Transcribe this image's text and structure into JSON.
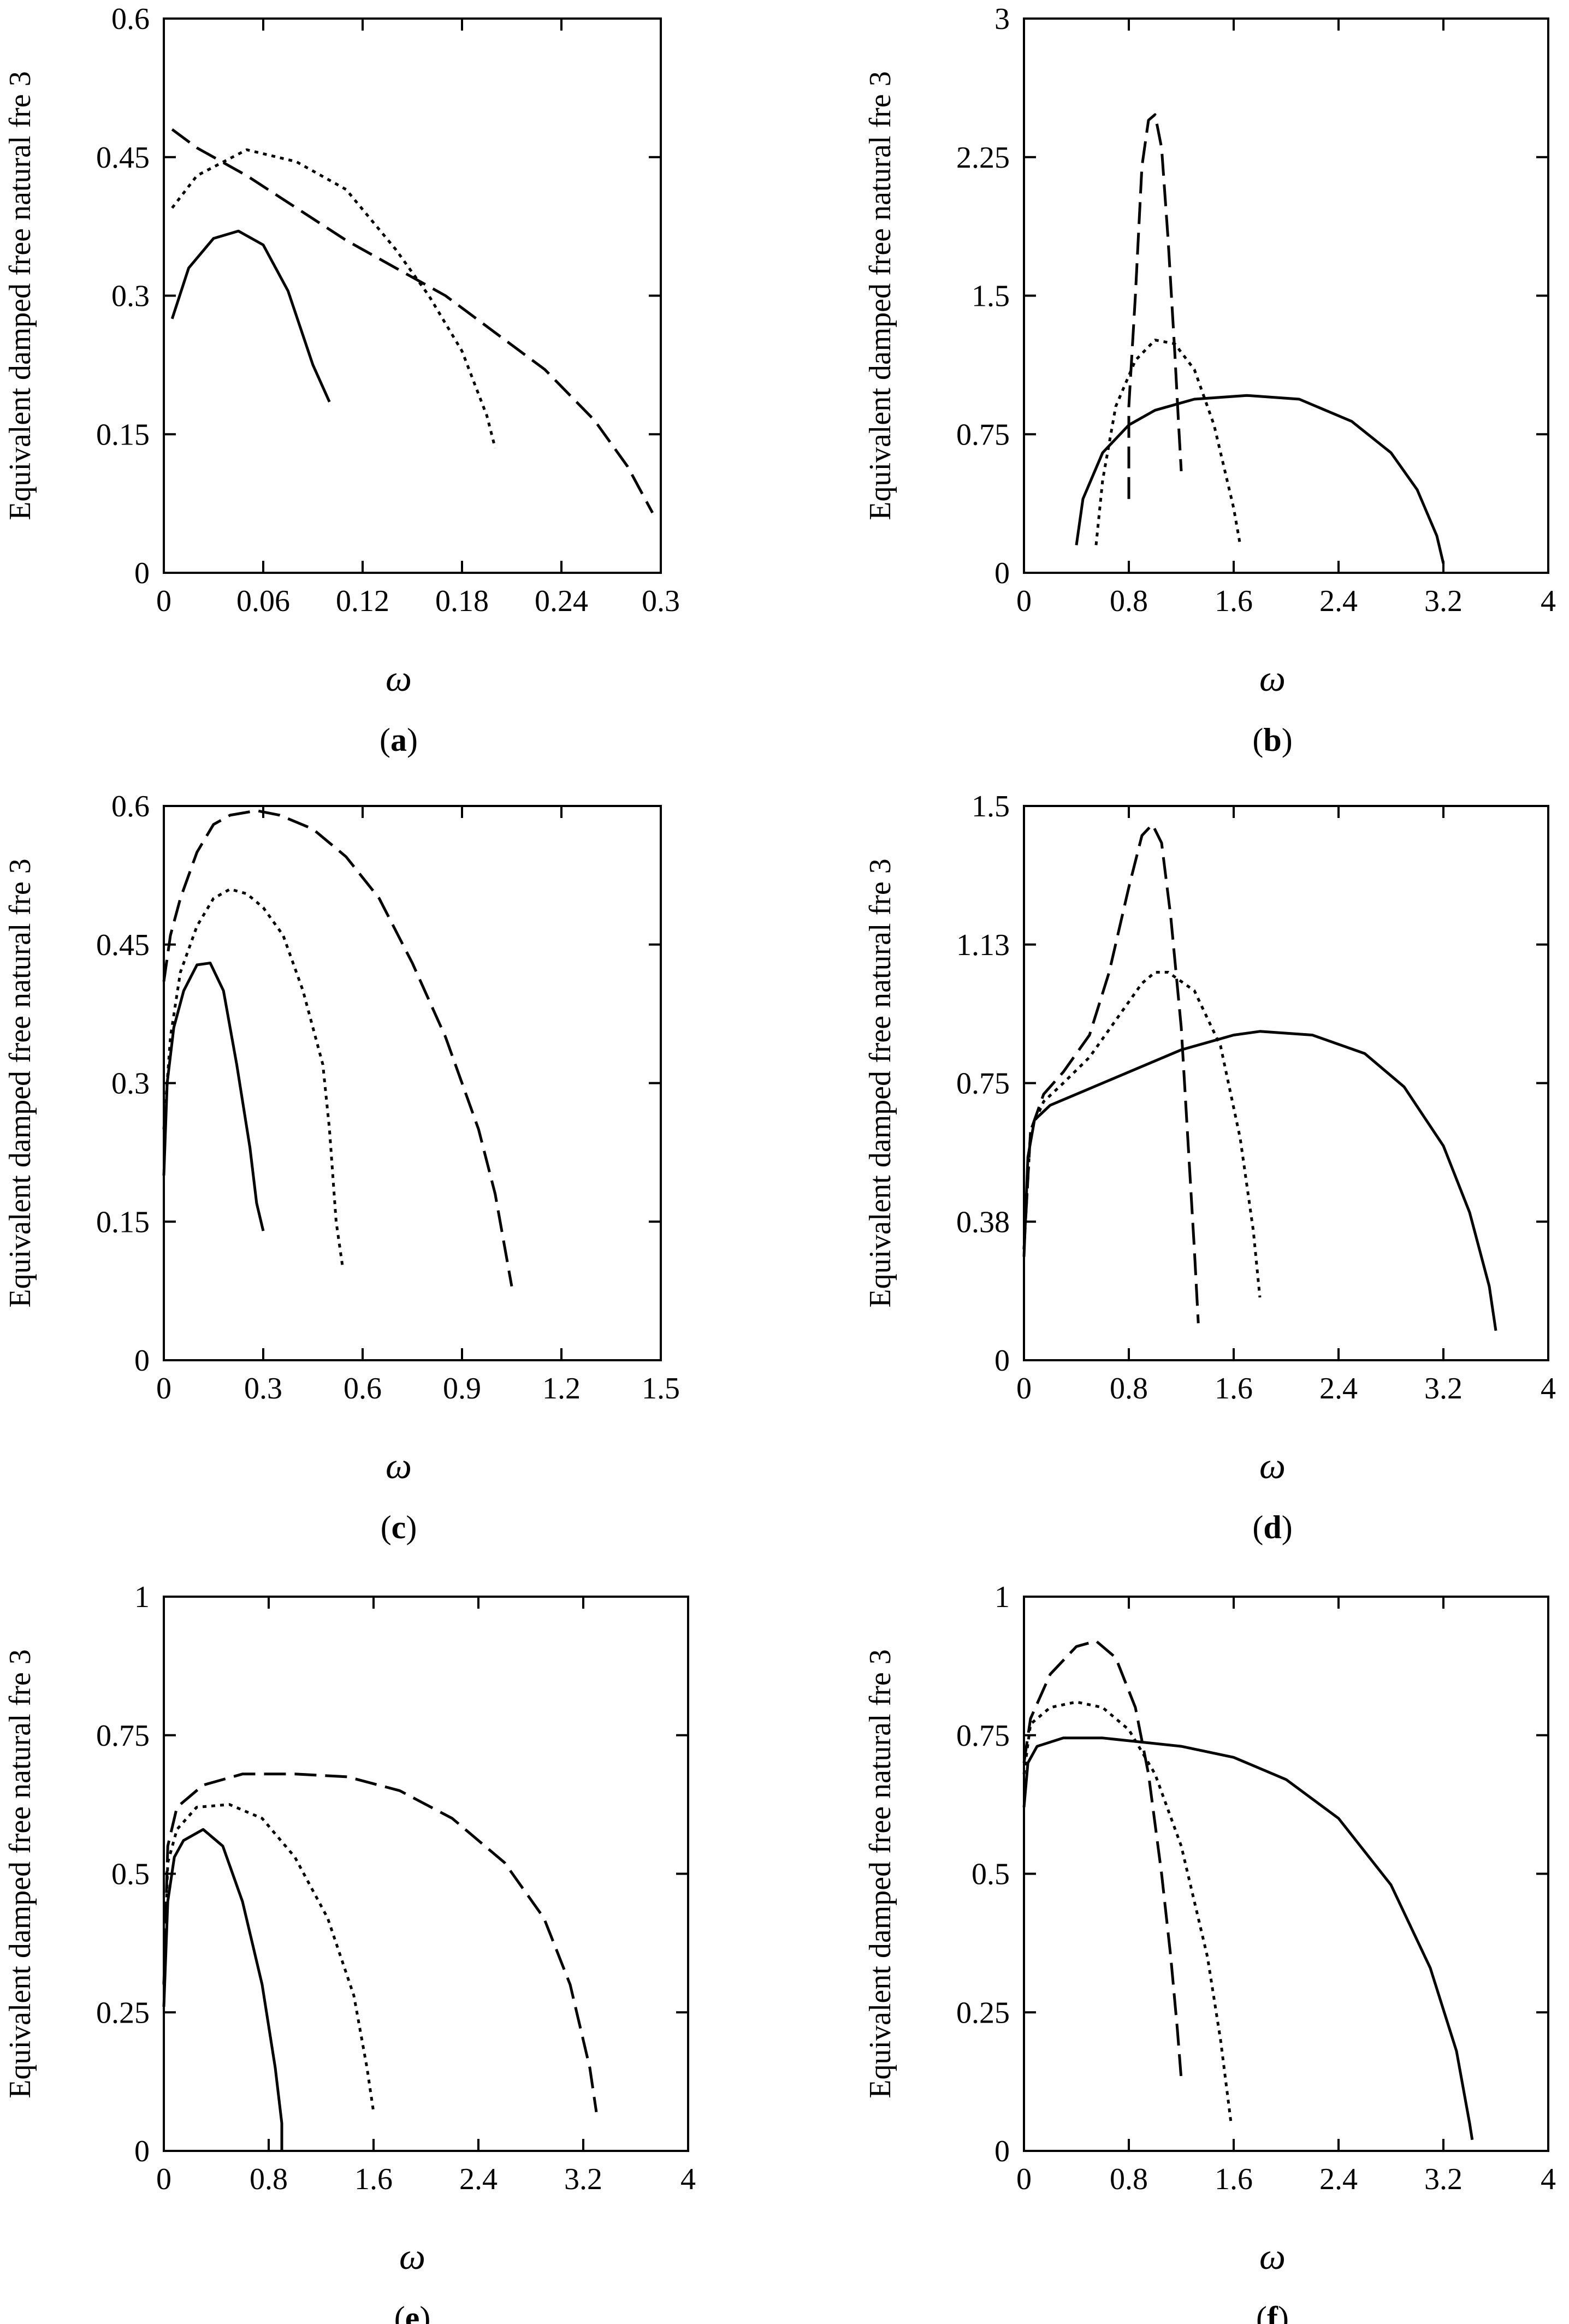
{
  "chart_data": [
    {
      "panel": "a",
      "type": "line",
      "ylabel": "Equivalent damped free natural fre 3",
      "xlabel": "ω",
      "xlim": [
        0,
        0.3
      ],
      "ylim": [
        0,
        0.6
      ],
      "xticks": [
        "0",
        "0.06",
        "0.12",
        "0.18",
        "0.24",
        "0.3"
      ],
      "yticks": [
        "0",
        "0.15",
        "0.3",
        "0.45",
        "0.6"
      ],
      "series": [
        {
          "name": "solid",
          "style": "solid",
          "x": [
            0.005,
            0.015,
            0.03,
            0.045,
            0.06,
            0.075,
            0.09,
            0.1
          ],
          "y": [
            0.275,
            0.33,
            0.362,
            0.37,
            0.355,
            0.305,
            0.225,
            0.185
          ]
        },
        {
          "name": "dotted",
          "style": "dotted",
          "x": [
            0.005,
            0.02,
            0.05,
            0.08,
            0.11,
            0.14,
            0.16,
            0.18,
            0.195,
            0.2
          ],
          "y": [
            0.395,
            0.43,
            0.458,
            0.445,
            0.415,
            0.35,
            0.3,
            0.24,
            0.17,
            0.135
          ]
        },
        {
          "name": "dashed",
          "style": "dashed",
          "x": [
            0.005,
            0.02,
            0.05,
            0.08,
            0.11,
            0.14,
            0.17,
            0.2,
            0.23,
            0.26,
            0.28,
            0.295
          ],
          "y": [
            0.48,
            0.46,
            0.43,
            0.395,
            0.36,
            0.33,
            0.3,
            0.26,
            0.22,
            0.165,
            0.115,
            0.065
          ]
        }
      ],
      "caption": "a"
    },
    {
      "panel": "b",
      "type": "line",
      "ylabel": "Equivalent damped free natural fre 3",
      "xlabel": "ω",
      "xlim": [
        0,
        4
      ],
      "ylim": [
        0,
        3
      ],
      "xticks": [
        "0",
        "0.8",
        "1.6",
        "2.4",
        "3.2",
        "4"
      ],
      "yticks": [
        "0",
        "0.75",
        "1.5",
        "2.25",
        "3"
      ],
      "series": [
        {
          "name": "solid",
          "style": "solid",
          "x": [
            0.4,
            0.45,
            0.6,
            0.8,
            1.0,
            1.3,
            1.7,
            2.1,
            2.5,
            2.8,
            3.0,
            3.15,
            3.2
          ],
          "y": [
            0.15,
            0.4,
            0.65,
            0.8,
            0.88,
            0.94,
            0.96,
            0.94,
            0.82,
            0.65,
            0.45,
            0.2,
            0.05
          ]
        },
        {
          "name": "dotted",
          "style": "dotted",
          "x": [
            0.55,
            0.6,
            0.7,
            0.85,
            1.0,
            1.15,
            1.3,
            1.45,
            1.6,
            1.65
          ],
          "y": [
            0.15,
            0.5,
            0.9,
            1.15,
            1.26,
            1.24,
            1.1,
            0.8,
            0.35,
            0.15
          ]
        },
        {
          "name": "dashed",
          "style": "dashed",
          "x": [
            0.8,
            0.8,
            0.85,
            0.9,
            0.95,
            1.0,
            1.05,
            1.1,
            1.15,
            1.18,
            1.2
          ],
          "y": [
            0.4,
            0.9,
            1.5,
            2.2,
            2.45,
            2.48,
            2.3,
            1.8,
            1.2,
            0.8,
            0.55
          ]
        }
      ],
      "caption": "b"
    },
    {
      "panel": "c",
      "type": "line",
      "ylabel": "Equivalent damped free natural fre 3",
      "xlabel": "ω",
      "xlim": [
        0,
        1.5
      ],
      "ylim": [
        0,
        0.6
      ],
      "xticks": [
        "0",
        "0.3",
        "0.6",
        "0.9",
        "1.2",
        "1.5"
      ],
      "yticks": [
        "0",
        "0.15",
        "0.3",
        "0.45",
        "0.6"
      ],
      "series": [
        {
          "name": "solid",
          "style": "solid",
          "x": [
            0.0,
            0.01,
            0.03,
            0.06,
            0.1,
            0.14,
            0.18,
            0.22,
            0.26,
            0.28,
            0.3
          ],
          "y": [
            0.2,
            0.3,
            0.36,
            0.4,
            0.428,
            0.43,
            0.4,
            0.32,
            0.23,
            0.17,
            0.14
          ]
        },
        {
          "name": "dotted",
          "style": "dotted",
          "x": [
            0.0,
            0.02,
            0.05,
            0.1,
            0.15,
            0.2,
            0.25,
            0.3,
            0.36,
            0.42,
            0.48,
            0.5,
            0.52,
            0.54
          ],
          "y": [
            0.25,
            0.35,
            0.42,
            0.47,
            0.5,
            0.51,
            0.505,
            0.49,
            0.46,
            0.4,
            0.32,
            0.25,
            0.15,
            0.1
          ]
        },
        {
          "name": "dashed",
          "style": "dashed",
          "x": [
            0.0,
            0.02,
            0.05,
            0.1,
            0.15,
            0.2,
            0.28,
            0.35,
            0.45,
            0.55,
            0.65,
            0.75,
            0.85,
            0.95,
            1.0,
            1.03,
            1.05
          ],
          "y": [
            0.41,
            0.46,
            0.5,
            0.55,
            0.58,
            0.59,
            0.595,
            0.59,
            0.575,
            0.545,
            0.5,
            0.43,
            0.35,
            0.25,
            0.18,
            0.12,
            0.08
          ]
        }
      ],
      "caption": "c"
    },
    {
      "panel": "d",
      "type": "line",
      "ylabel": "Equivalent damped free natural fre 3",
      "xlabel": "ω",
      "xlim": [
        0,
        4
      ],
      "ylim": [
        0,
        1.5
      ],
      "xticks": [
        "0",
        "0.8",
        "1.6",
        "2.4",
        "3.2",
        "4"
      ],
      "yticks": [
        "0",
        "0.38",
        "0.75",
        "1.13",
        "1.5"
      ],
      "series": [
        {
          "name": "solid",
          "style": "solid",
          "x": [
            0.0,
            0.03,
            0.08,
            0.2,
            0.4,
            0.8,
            1.2,
            1.6,
            1.8,
            2.2,
            2.6,
            2.9,
            3.2,
            3.4,
            3.55,
            3.6
          ],
          "y": [
            0.28,
            0.55,
            0.65,
            0.69,
            0.72,
            0.78,
            0.84,
            0.88,
            0.89,
            0.88,
            0.83,
            0.74,
            0.58,
            0.4,
            0.2,
            0.08
          ]
        },
        {
          "name": "dotted",
          "style": "dotted",
          "x": [
            0.0,
            0.05,
            0.15,
            0.3,
            0.5,
            0.7,
            0.9,
            1.0,
            1.1,
            1.3,
            1.5,
            1.65,
            1.75,
            1.8
          ],
          "y": [
            0.3,
            0.62,
            0.7,
            0.75,
            0.82,
            0.92,
            1.02,
            1.05,
            1.05,
            1.0,
            0.85,
            0.6,
            0.35,
            0.17
          ]
        },
        {
          "name": "dashed",
          "style": "dashed",
          "x": [
            0.0,
            0.05,
            0.15,
            0.3,
            0.5,
            0.65,
            0.8,
            0.9,
            0.98,
            1.05,
            1.12,
            1.2,
            1.25,
            1.3,
            1.33
          ],
          "y": [
            0.3,
            0.62,
            0.72,
            0.78,
            0.88,
            1.05,
            1.28,
            1.42,
            1.45,
            1.4,
            1.2,
            0.9,
            0.6,
            0.3,
            0.1
          ]
        }
      ],
      "caption": "d"
    },
    {
      "panel": "e",
      "type": "line",
      "ylabel": "Equivalent damped free natural fre 3",
      "xlabel": "ω",
      "xlim": [
        0,
        4
      ],
      "ylim": [
        0,
        1
      ],
      "xticks": [
        "0",
        "0.8",
        "1.6",
        "2.4",
        "3.2",
        "4"
      ],
      "yticks": [
        "0",
        "0.25",
        "0.5",
        "0.75",
        "1"
      ],
      "series": [
        {
          "name": "solid",
          "style": "solid",
          "x": [
            0.0,
            0.03,
            0.08,
            0.15,
            0.3,
            0.45,
            0.6,
            0.75,
            0.85,
            0.9,
            0.9
          ],
          "y": [
            0.26,
            0.45,
            0.53,
            0.56,
            0.58,
            0.55,
            0.45,
            0.3,
            0.15,
            0.05,
            0.0
          ]
        },
        {
          "name": "dotted",
          "style": "dotted",
          "x": [
            0.0,
            0.03,
            0.1,
            0.25,
            0.5,
            0.75,
            1.0,
            1.25,
            1.45,
            1.55,
            1.6
          ],
          "y": [
            0.3,
            0.52,
            0.58,
            0.62,
            0.625,
            0.6,
            0.53,
            0.42,
            0.28,
            0.15,
            0.07
          ]
        },
        {
          "name": "dashed",
          "style": "dashed",
          "x": [
            0.0,
            0.03,
            0.1,
            0.3,
            0.6,
            0.8,
            1.0,
            1.4,
            1.8,
            2.2,
            2.6,
            2.9,
            3.1,
            3.25,
            3.3
          ],
          "y": [
            0.3,
            0.55,
            0.62,
            0.66,
            0.68,
            0.68,
            0.68,
            0.675,
            0.65,
            0.6,
            0.52,
            0.42,
            0.3,
            0.15,
            0.07
          ]
        }
      ],
      "caption": "e"
    },
    {
      "panel": "f",
      "type": "line",
      "ylabel": "Equivalent damped free natural fre 3",
      "xlabel": "ω",
      "xlim": [
        0,
        4
      ],
      "ylim": [
        0,
        1
      ],
      "xticks": [
        "0",
        "0.8",
        "1.6",
        "2.4",
        "3.2",
        "4"
      ],
      "yticks": [
        "0",
        "0.25",
        "0.5",
        "0.75",
        "1"
      ],
      "series": [
        {
          "name": "solid",
          "style": "solid",
          "x": [
            0.0,
            0.03,
            0.1,
            0.3,
            0.6,
            0.8,
            1.2,
            1.6,
            2.0,
            2.4,
            2.8,
            3.1,
            3.3,
            3.4,
            3.42
          ],
          "y": [
            0.62,
            0.7,
            0.73,
            0.745,
            0.745,
            0.74,
            0.73,
            0.71,
            0.67,
            0.6,
            0.48,
            0.33,
            0.18,
            0.05,
            0.02
          ]
        },
        {
          "name": "dotted",
          "style": "dotted",
          "x": [
            0.0,
            0.05,
            0.2,
            0.4,
            0.6,
            0.8,
            1.0,
            1.2,
            1.4,
            1.5,
            1.58
          ],
          "y": [
            0.68,
            0.77,
            0.8,
            0.81,
            0.8,
            0.76,
            0.68,
            0.55,
            0.35,
            0.2,
            0.05
          ]
        },
        {
          "name": "dashed",
          "style": "dashed",
          "x": [
            0.0,
            0.05,
            0.2,
            0.4,
            0.55,
            0.7,
            0.85,
            0.95,
            1.05,
            1.12,
            1.17,
            1.2
          ],
          "y": [
            0.7,
            0.78,
            0.86,
            0.91,
            0.92,
            0.89,
            0.8,
            0.68,
            0.5,
            0.35,
            0.22,
            0.13
          ]
        }
      ],
      "caption": "f"
    }
  ]
}
